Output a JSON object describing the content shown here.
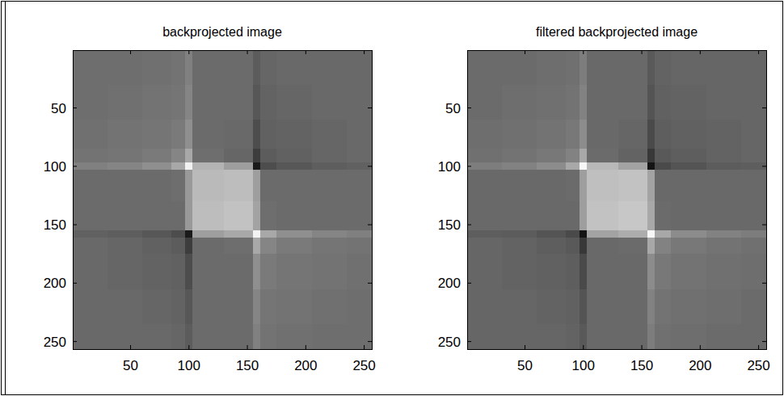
{
  "chart_data": [
    {
      "type": "heatmap",
      "title": "backprojected image",
      "color": "gray",
      "xlim": [
        0.5,
        256.5
      ],
      "ylim": [
        256.5,
        0.5
      ],
      "xticks": [
        50,
        100,
        150,
        200,
        250
      ],
      "yticks": [
        50,
        100,
        150,
        200,
        250
      ],
      "clim": [
        0,
        1
      ],
      "x_edges": [
        0.5,
        30,
        60,
        85,
        97,
        103,
        130,
        155,
        161,
        175,
        205,
        235,
        256.5
      ],
      "y_edges": [
        0.5,
        30,
        60,
        85,
        97,
        103,
        130,
        155,
        161,
        175,
        205,
        235,
        256.5
      ],
      "cells": [
        [
          0.43,
          0.43,
          0.44,
          0.45,
          0.5,
          0.42,
          0.42,
          0.36,
          0.4,
          0.41,
          0.41,
          0.41
        ],
        [
          0.43,
          0.44,
          0.45,
          0.46,
          0.52,
          0.42,
          0.42,
          0.34,
          0.39,
          0.4,
          0.41,
          0.41
        ],
        [
          0.44,
          0.45,
          0.46,
          0.48,
          0.56,
          0.42,
          0.41,
          0.3,
          0.38,
          0.39,
          0.4,
          0.41
        ],
        [
          0.45,
          0.46,
          0.48,
          0.52,
          0.66,
          0.43,
          0.4,
          0.24,
          0.36,
          0.38,
          0.4,
          0.41
        ],
        [
          0.5,
          0.52,
          0.56,
          0.66,
          0.95,
          0.7,
          0.62,
          0.1,
          0.3,
          0.34,
          0.37,
          0.38
        ],
        [
          0.42,
          0.42,
          0.42,
          0.43,
          0.6,
          0.73,
          0.74,
          0.62,
          0.42,
          0.42,
          0.42,
          0.42
        ],
        [
          0.42,
          0.42,
          0.42,
          0.42,
          0.6,
          0.74,
          0.76,
          0.64,
          0.43,
          0.42,
          0.42,
          0.42
        ],
        [
          0.38,
          0.37,
          0.34,
          0.3,
          0.1,
          0.62,
          0.66,
          0.95,
          0.66,
          0.56,
          0.52,
          0.5
        ],
        [
          0.41,
          0.4,
          0.38,
          0.36,
          0.24,
          0.42,
          0.43,
          0.66,
          0.52,
          0.48,
          0.46,
          0.45
        ],
        [
          0.41,
          0.4,
          0.39,
          0.38,
          0.3,
          0.42,
          0.42,
          0.56,
          0.48,
          0.46,
          0.45,
          0.44
        ],
        [
          0.41,
          0.41,
          0.4,
          0.39,
          0.34,
          0.42,
          0.42,
          0.52,
          0.46,
          0.45,
          0.44,
          0.43
        ],
        [
          0.41,
          0.41,
          0.41,
          0.4,
          0.36,
          0.42,
          0.42,
          0.5,
          0.45,
          0.44,
          0.43,
          0.43
        ]
      ]
    },
    {
      "type": "heatmap",
      "title": "filtered backprojected image",
      "color": "gray",
      "xlim": [
        0.5,
        256.5
      ],
      "ylim": [
        256.5,
        0.5
      ],
      "xticks": [
        50,
        100,
        150,
        200,
        250
      ],
      "yticks": [
        50,
        100,
        150,
        200,
        250
      ],
      "clim": [
        0,
        1
      ],
      "x_edges": [
        0.5,
        30,
        60,
        85,
        97,
        103,
        130,
        155,
        161,
        175,
        205,
        235,
        256.5
      ],
      "y_edges": [
        0.5,
        30,
        60,
        85,
        97,
        103,
        130,
        155,
        161,
        175,
        205,
        235,
        256.5
      ],
      "cells": [
        [
          0.42,
          0.42,
          0.43,
          0.44,
          0.49,
          0.41,
          0.41,
          0.35,
          0.39,
          0.4,
          0.4,
          0.4
        ],
        [
          0.42,
          0.43,
          0.44,
          0.45,
          0.51,
          0.41,
          0.41,
          0.33,
          0.38,
          0.39,
          0.4,
          0.4
        ],
        [
          0.43,
          0.44,
          0.45,
          0.47,
          0.55,
          0.41,
          0.4,
          0.29,
          0.37,
          0.38,
          0.39,
          0.4
        ],
        [
          0.44,
          0.45,
          0.47,
          0.51,
          0.66,
          0.42,
          0.39,
          0.22,
          0.35,
          0.37,
          0.39,
          0.4
        ],
        [
          0.49,
          0.51,
          0.55,
          0.66,
          0.97,
          0.72,
          0.64,
          0.08,
          0.29,
          0.33,
          0.36,
          0.37
        ],
        [
          0.41,
          0.41,
          0.41,
          0.42,
          0.62,
          0.75,
          0.76,
          0.64,
          0.41,
          0.41,
          0.41,
          0.41
        ],
        [
          0.41,
          0.41,
          0.41,
          0.41,
          0.62,
          0.76,
          0.78,
          0.66,
          0.42,
          0.41,
          0.41,
          0.41
        ],
        [
          0.37,
          0.36,
          0.33,
          0.29,
          0.08,
          0.64,
          0.68,
          0.97,
          0.66,
          0.55,
          0.51,
          0.49
        ],
        [
          0.4,
          0.39,
          0.37,
          0.35,
          0.22,
          0.41,
          0.42,
          0.66,
          0.51,
          0.47,
          0.45,
          0.44
        ],
        [
          0.4,
          0.39,
          0.38,
          0.37,
          0.29,
          0.41,
          0.41,
          0.55,
          0.47,
          0.45,
          0.44,
          0.43
        ],
        [
          0.4,
          0.4,
          0.39,
          0.38,
          0.33,
          0.41,
          0.41,
          0.51,
          0.45,
          0.44,
          0.43,
          0.42
        ],
        [
          0.4,
          0.4,
          0.4,
          0.39,
          0.35,
          0.41,
          0.41,
          0.49,
          0.44,
          0.43,
          0.42,
          0.42
        ]
      ]
    }
  ]
}
